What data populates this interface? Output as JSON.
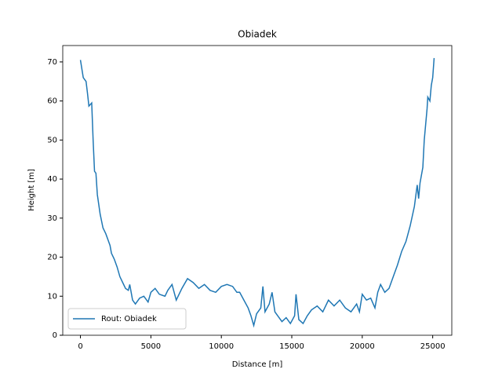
{
  "chart_data": {
    "type": "line",
    "title": "Obiadek",
    "xlabel": "Distance [m]",
    "ylabel": "Height [m]",
    "x": [
      0,
      200,
      400,
      500,
      600,
      800,
      900,
      1000,
      1100,
      1200,
      1400,
      1600,
      1800,
      2000,
      2100,
      2200,
      2400,
      2600,
      2800,
      3000,
      3200,
      3400,
      3500,
      3700,
      3900,
      4200,
      4500,
      4800,
      5000,
      5300,
      5600,
      6000,
      6200,
      6500,
      6800,
      7200,
      7600,
      8000,
      8400,
      8800,
      9200,
      9600,
      10000,
      10400,
      10800,
      11100,
      11300,
      11600,
      11900,
      12100,
      12300,
      12500,
      12800,
      12950,
      13100,
      13400,
      13600,
      13800,
      14000,
      14300,
      14600,
      14900,
      15200,
      15300,
      15500,
      15800,
      16100,
      16400,
      16800,
      17200,
      17600,
      18000,
      18400,
      18800,
      19200,
      19600,
      19800,
      20000,
      20300,
      20600,
      20900,
      21100,
      21300,
      21600,
      21900,
      22200,
      22500,
      22800,
      23100,
      23400,
      23700,
      23900,
      24000,
      24100,
      24300,
      24400,
      24600,
      24650,
      24800,
      24900,
      25000,
      25100
    ],
    "series": [
      {
        "name": "Rout: Obiadek",
        "color": "#1f77b4",
        "values": [
          70.5,
          66,
          65,
          62,
          58.7,
          59.5,
          50,
          42,
          41.5,
          36,
          31,
          27.5,
          26,
          24,
          23,
          21,
          19.5,
          17.5,
          15,
          13.5,
          12,
          11.5,
          13,
          9,
          8,
          9.5,
          10,
          8.5,
          11,
          12,
          10.5,
          10,
          11.5,
          13,
          9,
          12,
          14.5,
          13.5,
          12,
          13,
          11.5,
          11,
          12.5,
          13,
          12.5,
          11,
          11,
          9,
          7,
          5,
          2.5,
          5.5,
          7,
          12.5,
          6,
          8,
          11,
          6,
          5,
          3.5,
          4.5,
          3,
          5,
          10.5,
          4,
          3,
          5,
          6.5,
          7.5,
          6,
          9,
          7.5,
          9,
          7,
          6,
          8,
          6,
          10.5,
          9,
          9.5,
          7,
          11,
          13,
          11,
          12,
          15,
          18,
          21.5,
          24,
          28,
          33,
          38.5,
          35,
          39,
          43,
          50,
          58,
          61,
          60,
          64,
          66,
          71
        ]
      }
    ],
    "xlim": [
      -1255,
      26355
    ],
    "ylim": [
      0,
      74.2
    ],
    "xticks": [
      0,
      5000,
      10000,
      15000,
      20000,
      25000
    ],
    "yticks": [
      0,
      10,
      20,
      30,
      40,
      50,
      60,
      70
    ],
    "legend": "lower left"
  }
}
